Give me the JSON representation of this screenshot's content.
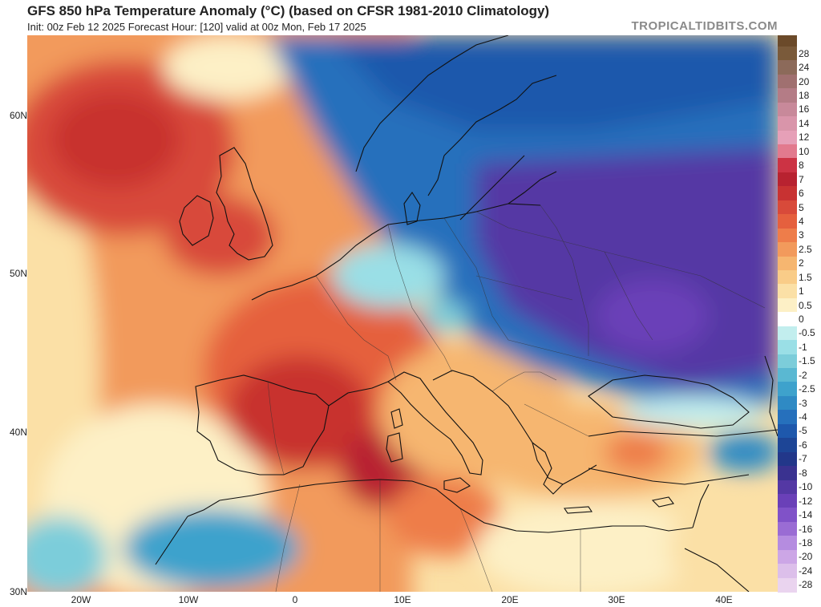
{
  "header": {
    "title": "GFS 850 hPa Temperature Anomaly (°C) (based on CFSR 1981-2010 Climatology)",
    "subtitle": "Init: 00z Feb 12 2025   Forecast Hour: [120]   valid at 00z Mon, Feb 17 2025",
    "brand": "TROPICALTIDBITS.COM"
  },
  "map": {
    "region": "Europe / North Atlantic",
    "lat_labels": [
      "60N",
      "50N",
      "40N",
      "30N"
    ],
    "lon_labels": [
      "20W",
      "10W",
      "0",
      "10E",
      "20E",
      "30E",
      "40E"
    ]
  },
  "colorbar": {
    "labels": [
      "28",
      "24",
      "20",
      "18",
      "16",
      "14",
      "12",
      "10",
      "8",
      "7",
      "6",
      "5",
      "4",
      "3",
      "2.5",
      "2",
      "1.5",
      "1",
      "0.5",
      "0",
      "-0.5",
      "-1",
      "-1.5",
      "-2",
      "-2.5",
      "-3",
      "-4",
      "-5",
      "-6",
      "-7",
      "-8",
      "-10",
      "-12",
      "-14",
      "-16",
      "-18",
      "-20",
      "-24",
      "-28"
    ],
    "colors": [
      "#7a5a3a",
      "#8c6a5a",
      "#a07070",
      "#b47c86",
      "#c8899a",
      "#d995aa",
      "#e6a0b8",
      "#e27a8e",
      "#cc3344",
      "#b82230",
      "#c83232",
      "#d84a3a",
      "#e5603e",
      "#ee7d4a",
      "#f29a5c",
      "#f6b670",
      "#f9cc88",
      "#fbe0a6",
      "#fdf0c6",
      "#ffffff",
      "#c2eeee",
      "#9adfe6",
      "#7ccdda",
      "#5ab8d2",
      "#3ea2cc",
      "#2f8ac4",
      "#2670bc",
      "#1e58ac",
      "#1d4596",
      "#22378a",
      "#3a3290",
      "#5438a4",
      "#6a40b8",
      "#8052c8",
      "#9a6cd4",
      "#b58ce0",
      "#cca6e6",
      "#dcbfea",
      "#ead4ef"
    ]
  },
  "colors": {
    "ocean_warm": "#e8613f",
    "ocean_cool": "#3a8fd0",
    "cold_core": "#6a40b8",
    "warm_core": "#c8322f"
  }
}
